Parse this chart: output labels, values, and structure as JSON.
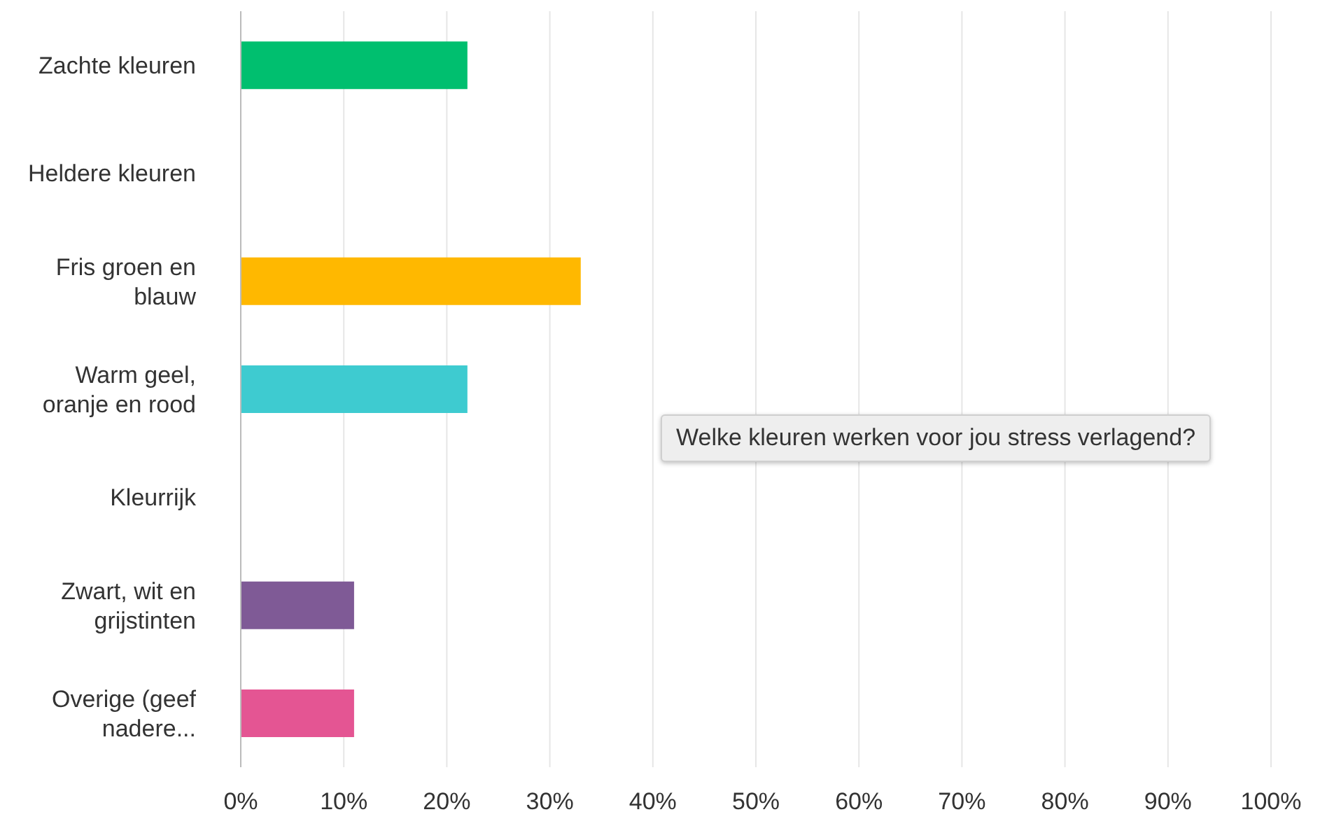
{
  "chart_data": {
    "type": "bar",
    "orientation": "horizontal",
    "categories": [
      "Zachte kleuren",
      "Heldere kleuren",
      "Fris groen en blauw",
      "Warm geel, oranje en rood",
      "Kleurrijk",
      "Zwart, wit en grijstinten",
      "Overige (geef nadere..."
    ],
    "values": [
      22,
      0,
      33,
      22,
      0,
      11,
      11
    ],
    "colors": [
      "#00bf6f",
      "#00bf6f",
      "#ffb800",
      "#3ecbd0",
      "#3ecbd0",
      "#7f5a96",
      "#e45593"
    ],
    "xlim": [
      0,
      100
    ],
    "xticks": [
      {
        "value": 0,
        "label": "0%"
      },
      {
        "value": 10,
        "label": "10%"
      },
      {
        "value": 20,
        "label": "20%"
      },
      {
        "value": 30,
        "label": "30%"
      },
      {
        "value": 40,
        "label": "40%"
      },
      {
        "value": 50,
        "label": "50%"
      },
      {
        "value": 60,
        "label": "60%"
      },
      {
        "value": 70,
        "label": "70%"
      },
      {
        "value": 80,
        "label": "80%"
      },
      {
        "value": 90,
        "label": "90%"
      },
      {
        "value": 100,
        "label": "100%"
      }
    ],
    "grid": "x",
    "annotations": [
      "Welke kleuren werken voor jou stress verlagend?"
    ]
  }
}
